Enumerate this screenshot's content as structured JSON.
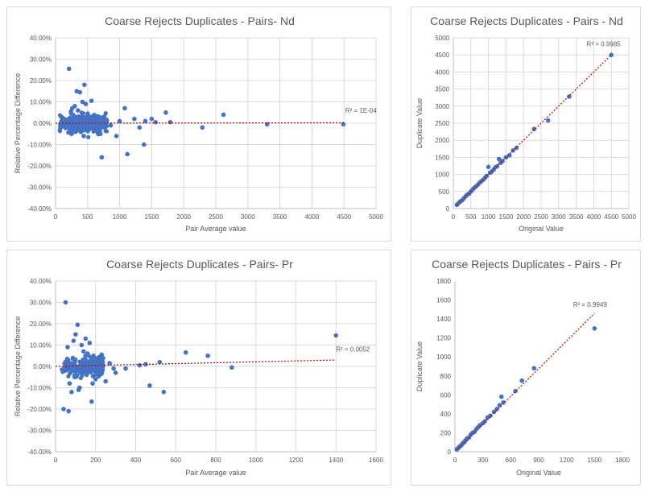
{
  "colors": {
    "point": "#4472c4",
    "trend": "#c00000",
    "grid": "#d9d9d9",
    "text": "#595959"
  },
  "chart_data": [
    {
      "type": "scatter",
      "title": "Coarse Rejects Duplicates - Pairs- Nd",
      "xlabel": "Pair Average value",
      "ylabel": "Relative Percentage Difference",
      "xlim": [
        0,
        5000
      ],
      "ylim": [
        -40,
        40
      ],
      "xticks": [
        "0",
        "500",
        "1000",
        "1500",
        "2000",
        "2500",
        "3000",
        "3500",
        "4000",
        "4500",
        "5000"
      ],
      "yticks": [
        "-40.00%",
        "-30.00%",
        "-20.00%",
        "-10.00%",
        "0.00%",
        "10.00%",
        "20.00%",
        "30.00%",
        "40.00%"
      ],
      "grid": true,
      "trendline": {
        "x1": 0,
        "y1": 0,
        "x2": 4500,
        "y2": 0.2,
        "label": "R² = 1E-04",
        "label_x": 4520,
        "label_y": 5
      },
      "series": [
        {
          "x": [
            210,
            450,
            330,
            380,
            560,
            420,
            470,
            300,
            260,
            350,
            240,
            500,
            610,
            280,
            330,
            390,
            180,
            160,
            220,
            560,
            300,
            250,
            440,
            520,
            580,
            600,
            650,
            700,
            720,
            800,
            860,
            950,
            1000,
            1080,
            1120,
            1230,
            1310,
            1380,
            1400,
            1500,
            1560,
            1720,
            1790,
            2290,
            2620,
            3300,
            4490
          ],
          "y": [
            25.5,
            18,
            15,
            14.5,
            10.5,
            10,
            9,
            8,
            7,
            6,
            5.5,
            4.5,
            3,
            2,
            1,
            0,
            -1,
            -2,
            -3,
            -1.5,
            -4,
            -5,
            -6,
            -3,
            -2,
            -1,
            -4,
            -5,
            -16,
            1,
            -1,
            -6,
            1,
            7,
            -14.5,
            2,
            -2,
            -10,
            1,
            2,
            0.5,
            5,
            0.5,
            -2,
            4,
            -0.5,
            -0.5
          ]
        }
      ],
      "cluster": {
        "x_min": 60,
        "x_max": 800,
        "y_spread": 6,
        "count": 320
      }
    },
    {
      "type": "scatter",
      "title": "Coarse Rejects Duplicates - Pairs - Nd",
      "xlabel": "Original Value",
      "ylabel": "Duplicate Value",
      "xlim": [
        0,
        5000
      ],
      "ylim": [
        0,
        5000
      ],
      "xticks": [
        "0",
        "500",
        "1000",
        "1500",
        "2000",
        "2500",
        "3000",
        "3500",
        "4000",
        "4500",
        "5000"
      ],
      "yticks": [
        "0",
        "500",
        "1000",
        "1500",
        "2000",
        "2500",
        "3000",
        "3500",
        "4000",
        "4500",
        "5000"
      ],
      "grid": true,
      "trendline": {
        "x1": 100,
        "y1": 100,
        "x2": 4500,
        "y2": 4500,
        "label": "R² = 0.9985",
        "label_x": 3800,
        "label_y": 4750
      },
      "series": [
        {
          "x": [
            100,
            150,
            200,
            250,
            300,
            350,
            400,
            450,
            500,
            550,
            600,
            650,
            700,
            750,
            800,
            850,
            900,
            950,
            1000,
            1050,
            1100,
            1150,
            1200,
            1250,
            1300,
            1350,
            1400,
            1500,
            1600,
            1700,
            1800,
            2300,
            2700,
            3300,
            4500
          ],
          "y": [
            110,
            160,
            210,
            240,
            300,
            360,
            410,
            440,
            500,
            560,
            610,
            650,
            700,
            760,
            800,
            840,
            900,
            960,
            1220,
            1050,
            1090,
            1140,
            1210,
            1240,
            1450,
            1340,
            1390,
            1500,
            1560,
            1700,
            1780,
            2330,
            2580,
            3280,
            4500
          ]
        }
      ]
    },
    {
      "type": "scatter",
      "title": "Coarse Rejects Duplicates - Pairs- Pr",
      "xlabel": "Pair Average value",
      "ylabel": "Relative Percentage Difference",
      "xlim": [
        0,
        1600
      ],
      "ylim": [
        -40,
        40
      ],
      "xticks": [
        "0",
        "200",
        "400",
        "600",
        "800",
        "1000",
        "1200",
        "1400",
        "1600"
      ],
      "yticks": [
        "-40.00%",
        "-30.00%",
        "-20.00%",
        "-10.00%",
        "0.00%",
        "10.00%",
        "20.00%",
        "30.00%",
        "40.00%"
      ],
      "grid": true,
      "trendline": {
        "x1": 0,
        "y1": 0,
        "x2": 1400,
        "y2": 3,
        "label": "R² = 0.0052",
        "label_x": 1400,
        "label_y": 7
      },
      "series": [
        {
          "x": [
            50,
            110,
            150,
            90,
            130,
            100,
            60,
            120,
            80,
            140,
            170,
            180,
            200,
            230,
            250,
            270,
            290,
            300,
            350,
            420,
            450,
            470,
            520,
            540,
            650,
            760,
            880,
            1400,
            40,
            65,
            95,
            115,
            185,
            205,
            160,
            70
          ],
          "y": [
            30,
            19.5,
            13,
            12,
            10,
            15,
            9,
            -10,
            -12,
            7,
            11,
            -16.5,
            -6,
            5.5,
            -7,
            1.5,
            -1,
            -3,
            -1,
            0.5,
            1,
            -9,
            2,
            -12,
            6.5,
            5,
            -0.5,
            14.5,
            -20,
            -21,
            -5,
            -11,
            -8,
            3,
            6,
            -8
          ]
        }
      ],
      "cluster": {
        "x_min": 30,
        "x_max": 240,
        "y_spread": 6,
        "count": 260
      }
    },
    {
      "type": "scatter",
      "title": "Coarse Rejects Duplicates - Pairs - Pr",
      "xlabel": "Original Value",
      "ylabel": "Duplicate Value",
      "xlim": [
        0,
        1800
      ],
      "ylim": [
        0,
        1800
      ],
      "xticks": [
        "0",
        "300",
        "600",
        "900",
        "1200",
        "1500",
        "1800"
      ],
      "yticks": [
        "0",
        "200",
        "400",
        "600",
        "800",
        "1000",
        "1200",
        "1400",
        "1600",
        "1800"
      ],
      "grid": false,
      "trendline": {
        "x1": 20,
        "y1": 20,
        "x2": 1500,
        "y2": 1460,
        "label": "R² = 0.9949",
        "label_x": 1270,
        "label_y": 1530
      },
      "series": [
        {
          "x": [
            20,
            30,
            40,
            50,
            60,
            70,
            80,
            90,
            100,
            110,
            120,
            130,
            150,
            170,
            190,
            210,
            230,
            250,
            270,
            300,
            320,
            350,
            380,
            420,
            450,
            480,
            500,
            520,
            650,
            720,
            850,
            1500
          ],
          "y": [
            25,
            35,
            40,
            55,
            60,
            70,
            85,
            95,
            100,
            115,
            125,
            140,
            150,
            180,
            200,
            210,
            240,
            260,
            280,
            300,
            320,
            360,
            380,
            420,
            450,
            490,
            580,
            520,
            640,
            750,
            880,
            1300
          ]
        }
      ]
    }
  ]
}
